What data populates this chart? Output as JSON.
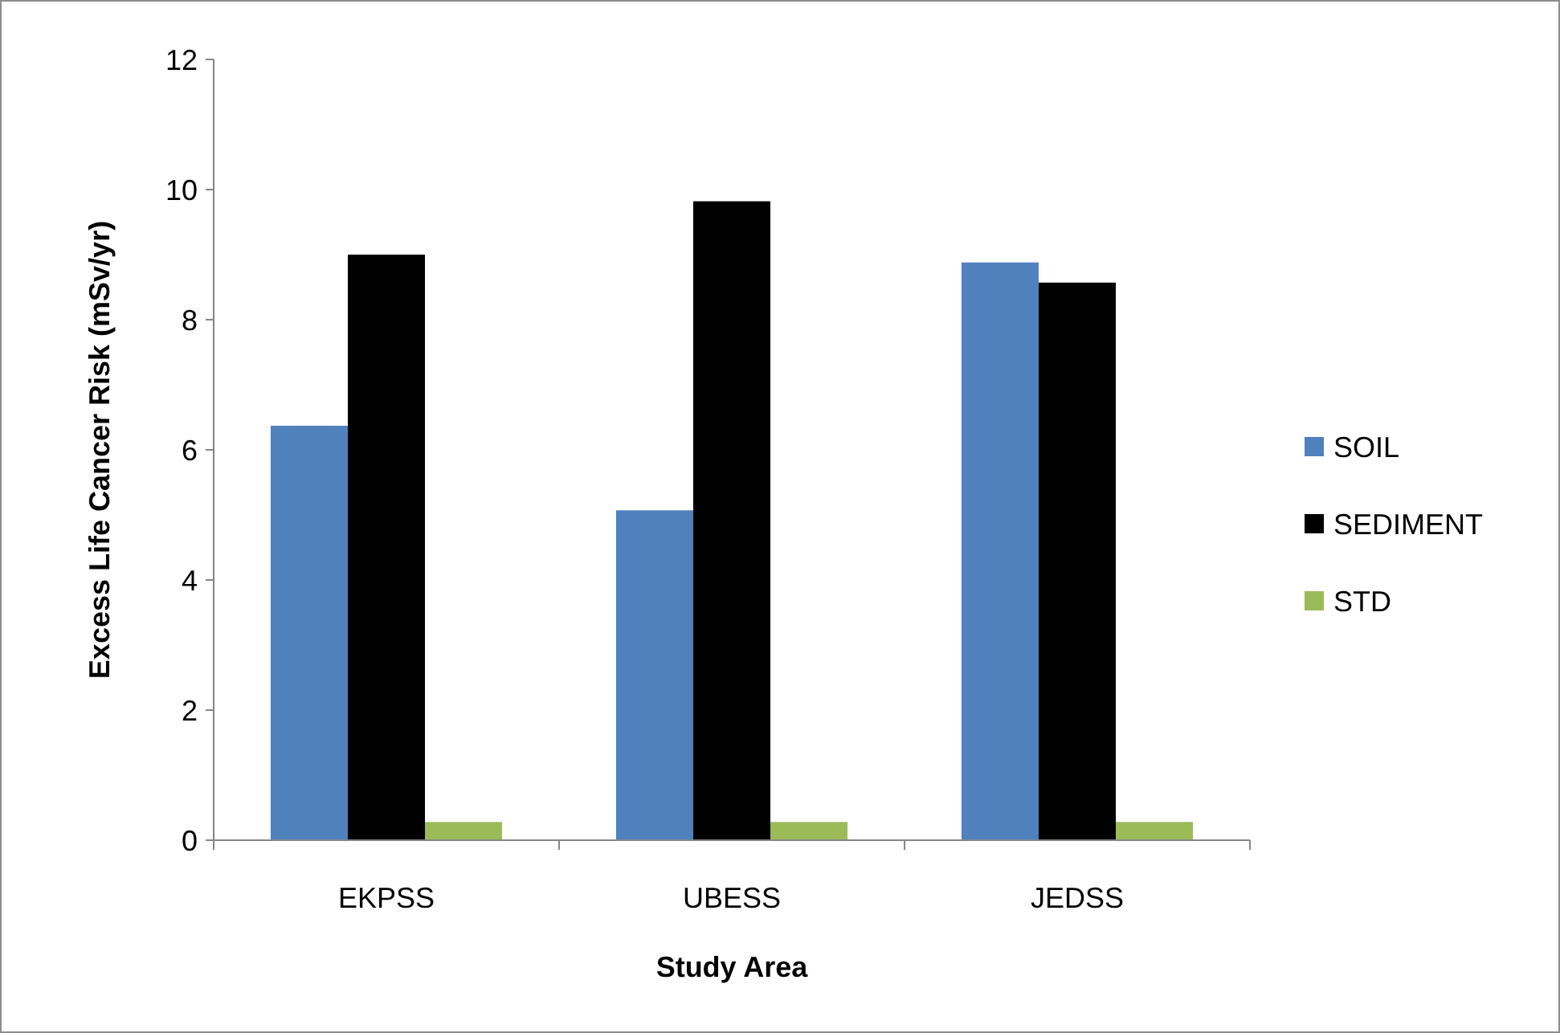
{
  "chart_data": {
    "type": "bar",
    "xlabel": "Study Area",
    "ylabel": "Excess  Life Cancer Risk (mSv/yr)",
    "categories": [
      "EKPSS",
      "UBESS",
      "JEDSS"
    ],
    "series": [
      {
        "name": "SOIL",
        "color": "#4f81bd",
        "values": [
          6.37,
          5.07,
          8.88
        ]
      },
      {
        "name": "SEDIMENT",
        "color": "#000000",
        "values": [
          9.0,
          9.82,
          8.57
        ]
      },
      {
        "name": "STD",
        "color": "#9bbb59",
        "values": [
          0.28,
          0.28,
          0.28
        ]
      }
    ],
    "ylim": [
      0,
      12
    ],
    "yticks": [
      0,
      2,
      4,
      6,
      8,
      10,
      12
    ],
    "grid": false,
    "legend": "right"
  }
}
